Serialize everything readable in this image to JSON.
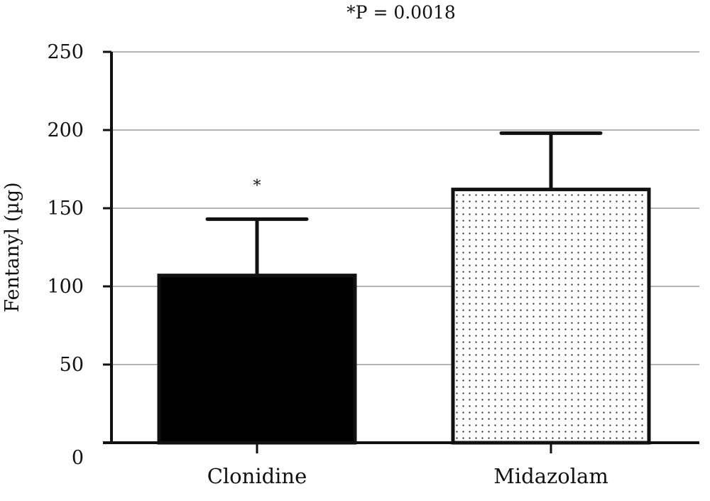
{
  "chart_data": {
    "type": "bar",
    "title": "",
    "annotation": "*P = 0.0018",
    "xlabel": "",
    "ylabel": "Fentanyl (µg)",
    "ylim": [
      0,
      250
    ],
    "yticks": [
      0,
      50,
      100,
      150,
      200,
      250
    ],
    "grid": true,
    "categories": [
      "Clonidine",
      "Midazolam"
    ],
    "values": [
      107,
      162
    ],
    "error_plus": [
      36,
      36
    ],
    "bar_styles": [
      "solid-black",
      "dotted"
    ],
    "significance_marks": [
      "*",
      ""
    ],
    "colors": {
      "bar_fill": "#000000",
      "grid": "#b5b5b5",
      "axis": "#111111"
    }
  }
}
